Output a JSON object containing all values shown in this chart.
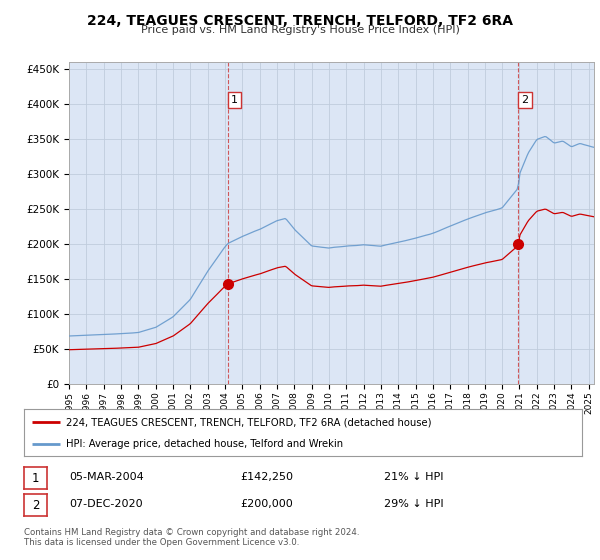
{
  "title": "224, TEAGUES CRESCENT, TRENCH, TELFORD, TF2 6RA",
  "subtitle": "Price paid vs. HM Land Registry's House Price Index (HPI)",
  "legend_line1": "224, TEAGUES CRESCENT, TRENCH, TELFORD, TF2 6RA (detached house)",
  "legend_line2": "HPI: Average price, detached house, Telford and Wrekin",
  "annotation1_date": "05-MAR-2004",
  "annotation1_price": "£142,250",
  "annotation1_hpi": "21% ↓ HPI",
  "annotation2_date": "07-DEC-2020",
  "annotation2_price": "£200,000",
  "annotation2_hpi": "29% ↓ HPI",
  "footer": "Contains HM Land Registry data © Crown copyright and database right 2024.\nThis data is licensed under the Open Government Licence v3.0.",
  "sale1_year": 2004.17,
  "sale1_price": 142250,
  "sale2_year": 2020.92,
  "sale2_price": 200000,
  "property_color": "#cc0000",
  "hpi_color": "#6699cc",
  "vline_color": "#cc3333",
  "plot_bg_color": "#dce6f5",
  "fig_bg_color": "#ffffff",
  "ylim_min": 0,
  "ylim_max": 460000,
  "xlim_min": 1995,
  "xlim_max": 2025.3
}
